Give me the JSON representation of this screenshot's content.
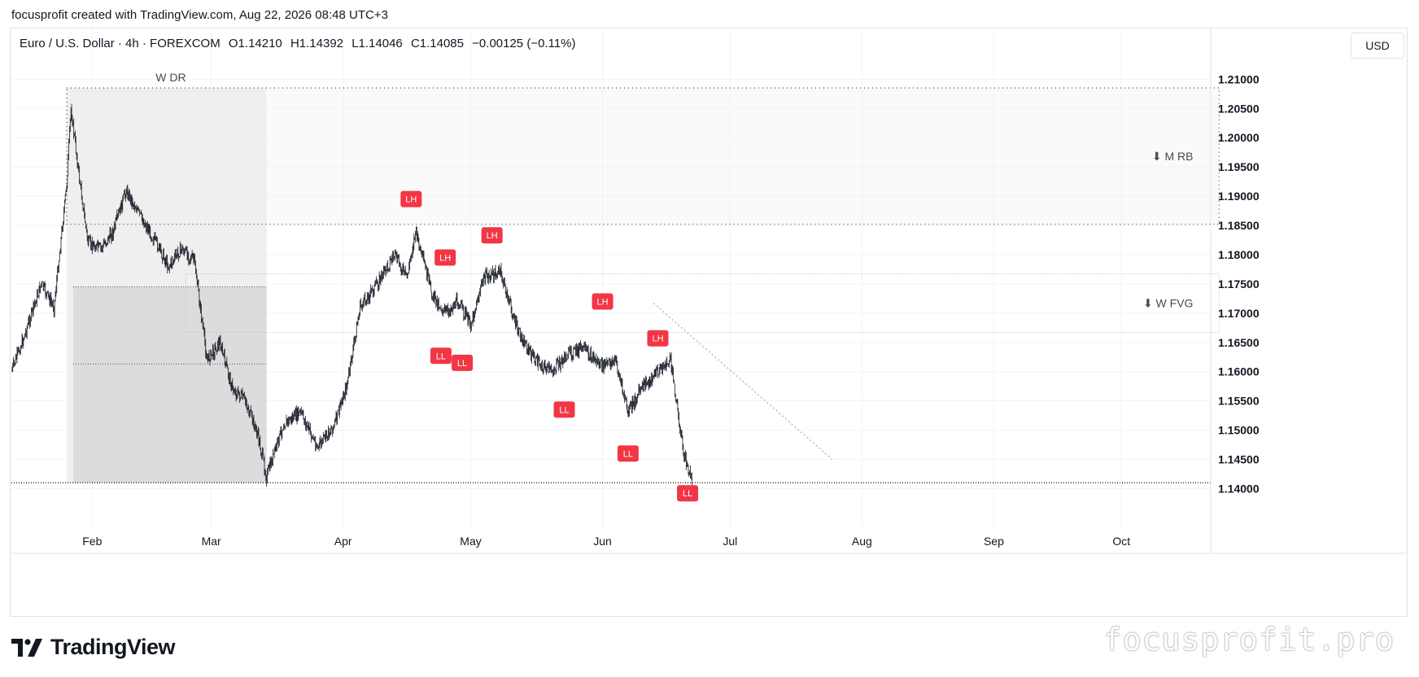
{
  "header": {
    "caption": "focusprofit created with TradingView.com, Aug 22, 2026 08:48 UTC+3"
  },
  "legend": {
    "symbol": "Euro / U.S. Dollar · 4h · FOREXCOM",
    "open": "O1.14210",
    "high": "H1.14392",
    "low": "L1.14046",
    "close": "C1.14085",
    "change": "−0.00125 (−0.11%)"
  },
  "currency_button": "USD",
  "brand": {
    "name": "TradingView"
  },
  "watermark": "focusprofit.pro",
  "colors": {
    "marker": "#f23645",
    "candle": "#131722",
    "grid": "#f0f3fa"
  },
  "chart_data": {
    "type": "line",
    "description_units": "x in date (2026), y in EUR/USD price",
    "x_ticks": [
      "Feb",
      "Mar",
      "Apr",
      "May",
      "Jun",
      "Jul",
      "Aug",
      "Sep",
      "Oct"
    ],
    "x_tick_dates": [
      "2026-02-01",
      "2026-03-01",
      "2026-04-01",
      "2026-05-01",
      "2026-06-01",
      "2026-07-01",
      "2026-08-01",
      "2026-09-01",
      "2026-10-01"
    ],
    "y_ticks": [
      "1.21000",
      "1.20500",
      "1.20000",
      "1.19500",
      "1.19000",
      "1.18500",
      "1.18000",
      "1.17500",
      "1.17000",
      "1.16500",
      "1.16000",
      "1.15500",
      "1.15000",
      "1.14500",
      "1.14000"
    ],
    "ylim": [
      1.1345,
      1.2138
    ],
    "xlim": [
      "2026-01-13",
      "2026-10-22"
    ],
    "grid": true,
    "series": [
      {
        "x": [
          "2026-01-13",
          "2026-01-16",
          "2026-01-20",
          "2026-01-23",
          "2026-01-26",
          "2026-01-27",
          "2026-01-29",
          "2026-01-31",
          "2026-02-03",
          "2026-02-06",
          "2026-02-09",
          "2026-02-12",
          "2026-02-16",
          "2026-02-19",
          "2026-02-22",
          "2026-02-25",
          "2026-02-28",
          "2026-03-03",
          "2026-03-06",
          "2026-03-09",
          "2026-03-12",
          "2026-03-14",
          "2026-03-18",
          "2026-03-22",
          "2026-03-26",
          "2026-03-30",
          "2026-04-02",
          "2026-04-05",
          "2026-04-09",
          "2026-04-13",
          "2026-04-16",
          "2026-04-18",
          "2026-04-22",
          "2026-04-25",
          "2026-04-28",
          "2026-05-01",
          "2026-05-04",
          "2026-05-08",
          "2026-05-12",
          "2026-05-16",
          "2026-05-20",
          "2026-05-24",
          "2026-05-27",
          "2026-06-01",
          "2026-06-04",
          "2026-06-07",
          "2026-06-10",
          "2026-06-14",
          "2026-06-17",
          "2026-06-20",
          "2026-06-22"
        ],
        "values": [
          1.16,
          1.166,
          1.175,
          1.171,
          1.192,
          1.205,
          1.193,
          1.182,
          1.181,
          1.184,
          1.191,
          1.187,
          1.182,
          1.178,
          1.181,
          1.179,
          1.162,
          1.165,
          1.157,
          1.155,
          1.149,
          1.142,
          1.151,
          1.153,
          1.147,
          1.151,
          1.158,
          1.171,
          1.175,
          1.18,
          1.176,
          1.184,
          1.173,
          1.17,
          1.172,
          1.168,
          1.176,
          1.177,
          1.167,
          1.162,
          1.16,
          1.163,
          1.164,
          1.161,
          1.162,
          1.153,
          1.157,
          1.16,
          1.162,
          1.146,
          1.141
        ]
      }
    ],
    "zones": [
      {
        "label": "W DR",
        "from": "2026-01-26",
        "to": "2026-03-14",
        "high": 1.2085,
        "low": 1.141
      },
      {
        "label": "⬇ M RB",
        "from": "2026-01-26",
        "to": "2026-10-24",
        "high": 1.2085,
        "low": 1.1852
      },
      {
        "label": "⬇ W FVG",
        "from": "2026-02-23",
        "to": "2026-10-24",
        "high": 1.1767,
        "low": 1.1667
      }
    ],
    "annotations": [
      {
        "label": "LH",
        "x": "2026-04-17",
        "y": 1.1895
      },
      {
        "label": "LH",
        "x": "2026-04-25",
        "y": 1.1795
      },
      {
        "label": "LH",
        "x": "2026-05-06",
        "y": 1.1833
      },
      {
        "label": "LH",
        "x": "2026-06-01",
        "y": 1.172
      },
      {
        "label": "LH",
        "x": "2026-06-14",
        "y": 1.1657
      },
      {
        "label": "LL",
        "x": "2026-04-24",
        "y": 1.1627
      },
      {
        "label": "LL",
        "x": "2026-04-29",
        "y": 1.1615
      },
      {
        "label": "LL",
        "x": "2026-05-23",
        "y": 1.1535
      },
      {
        "label": "LL",
        "x": "2026-06-07",
        "y": 1.146
      },
      {
        "label": "LL",
        "x": "2026-06-21",
        "y": 1.1392
      }
    ],
    "support_line": 1.141,
    "trend_projection": {
      "from": [
        "2026-06-13",
        1.1717
      ],
      "to": [
        "2026-07-25",
        1.145
      ]
    }
  }
}
